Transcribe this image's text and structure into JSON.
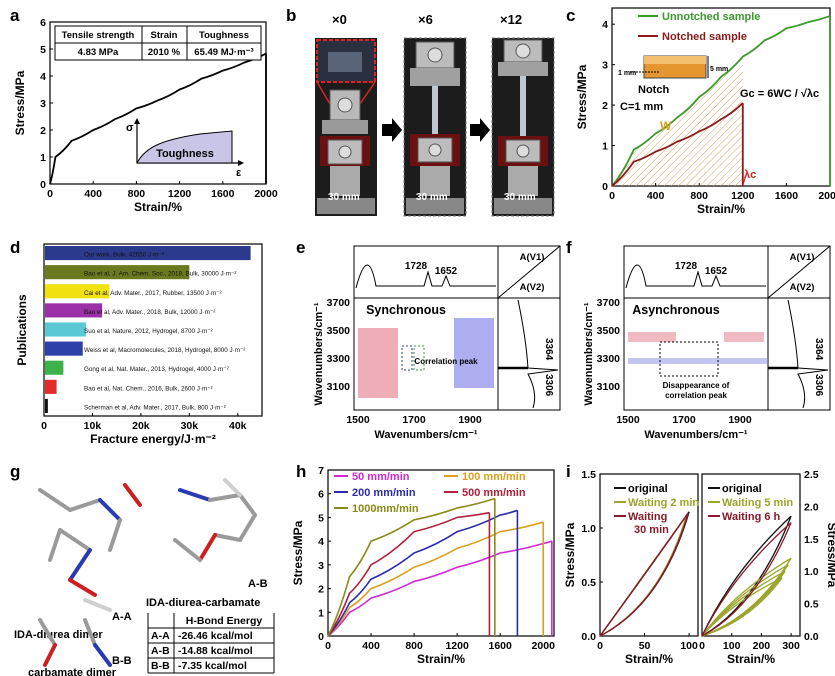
{
  "panel_labels": [
    "a",
    "b",
    "c",
    "d",
    "e",
    "f",
    "g",
    "h",
    "i"
  ],
  "a": {
    "table_headers": [
      "Tensile strength",
      "Strain",
      "Toughness"
    ],
    "table_values": [
      "4.83 MPa",
      "2010 %",
      "65.49 MJ·m⁻³"
    ],
    "inset_ylabel": "σ",
    "inset_xlabel": "ε",
    "inset_fill_label": "Toughness"
  },
  "b": {
    "stage_labels": [
      "×0",
      "×6",
      "×12"
    ],
    "scale_label": "30 mm"
  },
  "c": {
    "legend": [
      "Unnotched sample",
      "Notched sample"
    ],
    "notch_label": "Notch",
    "c_label": "C=1 mm",
    "mm1": "1 mm",
    "mm5": "5 mm",
    "w_label": "W",
    "lambda_label": "λc",
    "formula": "Gc = 6WC / √λc",
    "colors": {
      "unnotched": "#3a9a2a",
      "notched": "#8b1a1a"
    }
  },
  "d": {
    "bars": [
      {
        "text": "Our work, Bulk, 42650 J·m⁻²",
        "color": "#2b3a8c"
      },
      {
        "text": "Bao et al, J. Am. Chem. Soc., 2018, Bulk, 30000 J·m⁻²",
        "color": "#6b7a1e"
      },
      {
        "text": "Cai et al, Adv. Mater., 2017, Rubber, 13500 J·m⁻²",
        "color": "#f2e20f"
      },
      {
        "text": "Bao et al, Adv. Mater., 2018, Bulk, 12000 J·m⁻²",
        "color": "#9b2fa8"
      },
      {
        "text": "Suo et al, Nature, 2012, Hydrogel, 8700 J·m⁻²",
        "color": "#5bc8d6"
      },
      {
        "text": "Weiss et al, Macromolecules, 2018, Hydrogel, 8000 J·m⁻²",
        "color": "#2d3fa8"
      },
      {
        "text": "Gong et al, Nat. Mater., 2013, Hydrogel, 4000 J·m⁻²",
        "color": "#3bb24a"
      },
      {
        "text": "Bao et al, Nat. Chem., 2016, Bulk, 2600 J·m⁻²",
        "color": "#e32b2b"
      },
      {
        "text": "Scherman et al, Adv. Mater., 2017, Bulk, 800 J·m⁻²",
        "color": "#111111"
      }
    ]
  },
  "e": {
    "title": "Synchronous",
    "peaks": [
      "1728",
      "1652"
    ],
    "side": [
      "3364",
      "3306"
    ],
    "av1": "A(V1)",
    "av2": "A(V2)",
    "note": "Correlation peak"
  },
  "f": {
    "title": "Asynchronous",
    "peaks": [
      "1728",
      "1652"
    ],
    "side": [
      "3364",
      "3306"
    ],
    "av1": "A(V1)",
    "av2": "A(V2)",
    "note": "Disappearance of correlation peak"
  },
  "g": {
    "labels": [
      "A-A",
      "A-B",
      "B-B"
    ],
    "captions": [
      "IDA-diurea dimer",
      "IDA-diurea-carbamate",
      "carbamate dimer"
    ],
    "table_header": "H-Bond Energy",
    "table_rows": [
      [
        "A-A",
        "-26.46 kcal/mol"
      ],
      [
        "A-B",
        "-14.88 kcal/mol"
      ],
      [
        "B-B",
        "-7.35 kcal/mol"
      ]
    ]
  },
  "h": {
    "legend": [
      {
        "label": "50 mm/min",
        "color": "#d02ad0"
      },
      {
        "label": "100 mm/min",
        "color": "#d9a020"
      },
      {
        "label": "200 mm/min",
        "color": "#2a2ab0"
      },
      {
        "label": "500 mm/min",
        "color": "#b0203a"
      },
      {
        "label": "1000mm/min",
        "color": "#8a8a1a"
      }
    ]
  },
  "i": {
    "left_legend": [
      "original",
      "Waiting 2 min",
      "Waiting",
      "30 min"
    ],
    "right_legend": [
      "original",
      "Waiting 5 min",
      "Waiting 6 h"
    ]
  },
  "chart_data": [
    {
      "panel": "a",
      "type": "line",
      "xlabel": "Strain/%",
      "ylabel": "Stress/MPa",
      "xlim": [
        0,
        2000
      ],
      "ylim": [
        0,
        6
      ],
      "x": [
        0,
        50,
        200,
        400,
        600,
        800,
        1000,
        1200,
        1400,
        1600,
        1800,
        2000
      ],
      "y": [
        0,
        1.0,
        1.6,
        2.0,
        2.4,
        2.8,
        3.1,
        3.5,
        3.9,
        4.2,
        4.5,
        4.83
      ]
    },
    {
      "panel": "c",
      "type": "line",
      "xlabel": "Strain/%",
      "ylabel": "Stress/MPa",
      "xlim": [
        0,
        2000
      ],
      "ylim": [
        0,
        4
      ],
      "series": [
        {
          "name": "Unnotched sample",
          "x": [
            0,
            200,
            400,
            600,
            800,
            1000,
            1200,
            1400,
            1600,
            1800,
            2000
          ],
          "y": [
            0,
            0.9,
            1.3,
            1.7,
            2.2,
            2.7,
            3.2,
            3.6,
            3.9,
            4.05,
            4.2
          ]
        },
        {
          "name": "Notched sample",
          "x": [
            0,
            200,
            400,
            600,
            800,
            1000,
            1200
          ],
          "y": [
            0,
            0.6,
            0.85,
            1.1,
            1.35,
            1.65,
            2.05
          ]
        }
      ]
    },
    {
      "panel": "d",
      "type": "bar",
      "xlabel": "Fracture energy/J·m⁻²",
      "ylabel": "Publications",
      "categories": [
        "Our work",
        "Bao JACS 2018",
        "Cai AM 2017",
        "Bao AM 2018",
        "Suo Nature 2012",
        "Weiss Macro 2018",
        "Gong NM 2013",
        "Bao NC 2016",
        "Scherman AM 2017"
      ],
      "values": [
        42650,
        30000,
        13500,
        12000,
        8700,
        8000,
        4000,
        2600,
        800
      ],
      "xlim": [
        0,
        45000
      ]
    },
    {
      "panel": "h",
      "type": "line",
      "xlabel": "Strain/%",
      "ylabel": "Stress/MPa",
      "xlim": [
        0,
        2100
      ],
      "ylim": [
        0,
        7
      ],
      "series": [
        {
          "name": "50 mm/min",
          "x": [
            0,
            200,
            400,
            800,
            1200,
            1600,
            2000,
            2080
          ],
          "y": [
            0,
            1.0,
            1.6,
            2.3,
            2.9,
            3.5,
            3.9,
            4.0
          ]
        },
        {
          "name": "100 mm/min",
          "x": [
            0,
            200,
            400,
            800,
            1200,
            1600,
            2000
          ],
          "y": [
            0,
            1.2,
            2.0,
            2.9,
            3.7,
            4.4,
            4.8
          ]
        },
        {
          "name": "200 mm/min",
          "x": [
            0,
            200,
            400,
            800,
            1200,
            1600,
            1760
          ],
          "y": [
            0,
            1.4,
            2.4,
            3.5,
            4.4,
            5.1,
            5.3
          ]
        },
        {
          "name": "500 mm/min",
          "x": [
            0,
            200,
            400,
            800,
            1200,
            1500
          ],
          "y": [
            0,
            1.8,
            3.0,
            4.4,
            5.0,
            5.2
          ]
        },
        {
          "name": "1000mm/min",
          "x": [
            0,
            200,
            400,
            800,
            1200,
            1550
          ],
          "y": [
            0,
            2.5,
            4.0,
            4.9,
            5.4,
            5.8
          ]
        }
      ]
    },
    {
      "panel": "i-left",
      "type": "line",
      "xlabel": "Strain/%",
      "ylabel": "Stress/MPa",
      "xlim": [
        0,
        100
      ],
      "ylim": [
        0,
        1.5
      ]
    },
    {
      "panel": "i-right",
      "type": "line",
      "xlabel": "Strain/%",
      "ylabel": "Stress/MPa",
      "xlim": [
        0,
        300
      ],
      "ylim": [
        0,
        2.5
      ]
    }
  ]
}
